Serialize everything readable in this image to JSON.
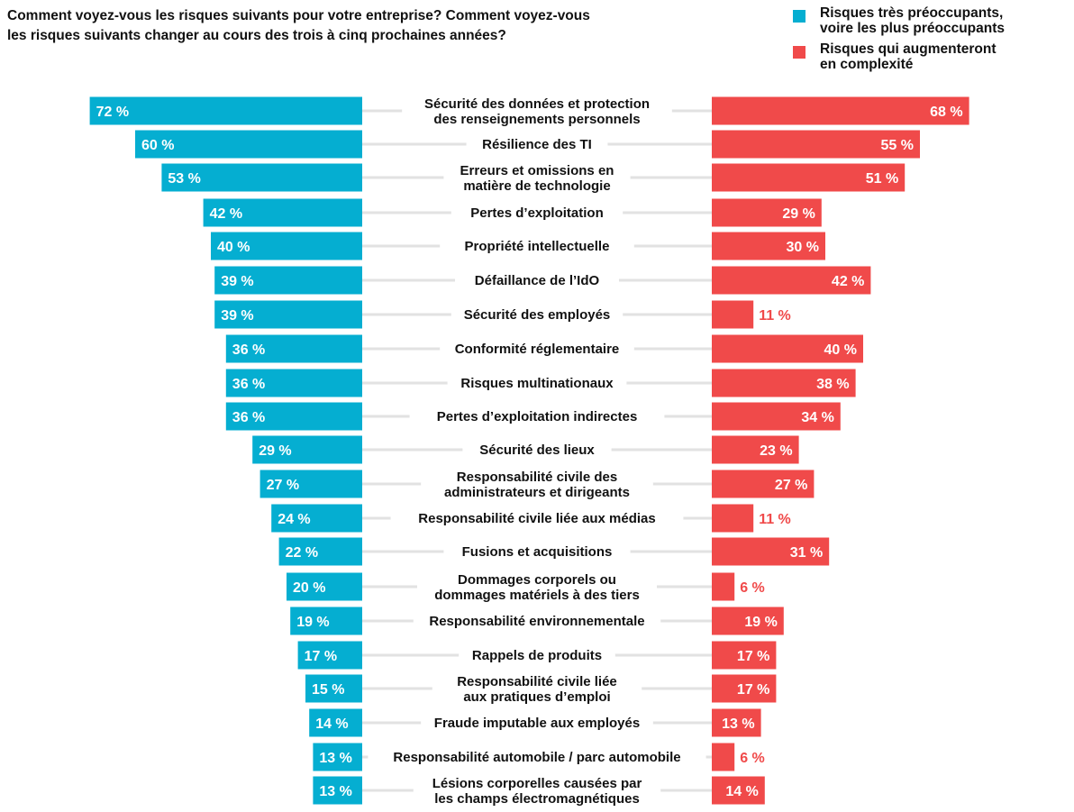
{
  "title": "Comment voyez-vous les risques suivants pour votre entreprise? Comment voyez-vous\nles risques suivants changer au cours des trois à cinq prochaines années?",
  "legend": [
    {
      "label": "Risques très préoccupants,\nvoire les plus préoccupants",
      "color": "#05AED1",
      "icon": "square-swatch-icon"
    },
    {
      "label": "Risques qui augmenteront\nen complexité",
      "color": "#F04A4A",
      "icon": "square-swatch-icon"
    }
  ],
  "chart_data": {
    "type": "bar",
    "orientation": "horizontal-diverging",
    "unit": "%",
    "categories": [
      "Sécurité des données et protection\ndes renseignements personnels",
      "Résilience des TI",
      "Erreurs et omissions en\nmatière de technologie",
      "Pertes d’exploitation",
      "Propriété intellectuelle",
      "Défaillance de l’IdO",
      "Sécurité des employés",
      "Conformité réglementaire",
      "Risques multinationaux",
      "Pertes d’exploitation indirectes",
      "Sécurité des lieux",
      "Responsabilité civile des\nadministrateurs et dirigeants",
      "Responsabilité civile liée aux médias",
      "Fusions et acquisitions",
      "Dommages corporels ou\ndommages matériels à des tiers",
      "Responsabilité environnementale",
      "Rappels de produits",
      "Responsabilité civile liée\naux pratiques d’emploi",
      "Fraude imputable aux employés",
      "Responsabilité automobile / parc automobile",
      "Lésions corporelles causées par\nles champs électromagnétiques"
    ],
    "series": [
      {
        "name": "Risques très préoccupants, voire les plus préoccupants",
        "color": "#05AED1",
        "values": [
          72,
          60,
          53,
          42,
          40,
          39,
          39,
          36,
          36,
          36,
          29,
          27,
          24,
          22,
          20,
          19,
          17,
          15,
          14,
          13,
          13
        ],
        "labels": [
          "72 %",
          "60 %",
          "53 %",
          "42 %",
          "40 %",
          "39 %",
          "39 %",
          "36 %",
          "36 %",
          "36 %",
          "29 %",
          "27 %",
          "24 %",
          "22 %",
          "20 %",
          "19 %",
          "17 %",
          "15 %",
          "14 %",
          "13 %",
          "13 %"
        ]
      },
      {
        "name": "Risques qui augmenteront en complexité",
        "color": "#F04A4A",
        "values": [
          68,
          55,
          51,
          29,
          30,
          42,
          11,
          40,
          38,
          34,
          23,
          27,
          11,
          31,
          6,
          19,
          17,
          17,
          13,
          6,
          14
        ],
        "labels": [
          "68 %",
          "55 %",
          "51 %",
          "29 %",
          "30 %",
          "42 %",
          "11 %",
          "40 %",
          "38 %",
          "34 %",
          "23 %",
          "27 %",
          "11 %",
          "31 %",
          "6 %",
          "19 %",
          "17 %",
          "17 %",
          "13 %",
          "6 %",
          "14 %"
        ]
      }
    ],
    "grid": false,
    "axes_visible": false,
    "legend_position": "top-right",
    "connector_line_color": "#E2E2E2",
    "label_text_color_inside": "#FFFFFF"
  }
}
